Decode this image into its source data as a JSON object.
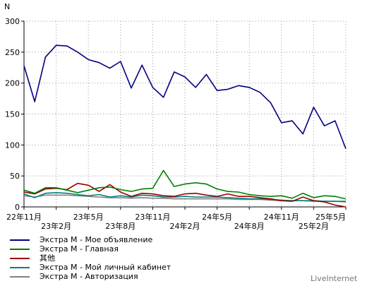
{
  "chart_data": {
    "type": "line",
    "ylabel": "N",
    "ylim": [
      0,
      300
    ],
    "yticks": [
      0,
      50,
      100,
      150,
      200,
      250,
      300
    ],
    "grid": true,
    "legend_position": "bottom-left",
    "x_tick_labels": [
      {
        "label": "22年11月",
        "index": 0,
        "row": 1
      },
      {
        "label": "23年2月",
        "index": 3,
        "row": 2
      },
      {
        "label": "23年5月",
        "index": 6,
        "row": 1
      },
      {
        "label": "23年8月",
        "index": 9,
        "row": 2
      },
      {
        "label": "23年11月",
        "index": 12,
        "row": 1
      },
      {
        "label": "24年2月",
        "index": 15,
        "row": 2
      },
      {
        "label": "24年5月",
        "index": 18,
        "row": 1
      },
      {
        "label": "24年8月",
        "index": 21,
        "row": 2
      },
      {
        "label": "24年11月",
        "index": 24,
        "row": 1
      },
      {
        "label": "25年2月",
        "index": 27,
        "row": 2
      },
      {
        "label": "25年5月",
        "index": 30,
        "row": 1
      }
    ],
    "series": [
      {
        "name": "Экстра М - Мое объявление",
        "color": "#000080",
        "values": [
          228,
          170,
          242,
          261,
          260,
          250,
          238,
          233,
          224,
          235,
          192,
          229,
          193,
          177,
          218,
          210,
          193,
          214,
          188,
          190,
          196,
          193,
          185,
          168,
          136,
          139,
          118,
          161,
          131,
          139,
          94
        ]
      },
      {
        "name": "Экстра М - Главная",
        "color": "#008000",
        "values": [
          27,
          22,
          31,
          31,
          27,
          23,
          27,
          31,
          32,
          28,
          25,
          29,
          30,
          59,
          33,
          37,
          39,
          37,
          29,
          25,
          24,
          20,
          18,
          17,
          18,
          14,
          22,
          15,
          18,
          17,
          13
        ]
      },
      {
        "name": "其他",
        "color": "#990000",
        "values": [
          24,
          21,
          29,
          30,
          28,
          38,
          35,
          25,
          36,
          24,
          17,
          22,
          21,
          18,
          17,
          21,
          22,
          19,
          17,
          21,
          17,
          17,
          15,
          13,
          10,
          9,
          16,
          10,
          8,
          3,
          0
        ]
      },
      {
        "name": "Экстра М - Мой личный кабинет",
        "color": "#008080",
        "values": [
          21,
          15,
          22,
          23,
          22,
          20,
          18,
          20,
          16,
          18,
          16,
          19,
          18,
          16,
          16,
          17,
          16,
          16,
          16,
          15,
          14,
          13,
          13,
          12,
          11,
          10,
          10,
          10,
          9,
          9,
          9
        ]
      },
      {
        "name": "Экстра М - Авторизация",
        "color": "#808080",
        "values": [
          18,
          16,
          19,
          19,
          19,
          18,
          17,
          16,
          15,
          15,
          14,
          15,
          14,
          14,
          13,
          13,
          13,
          13,
          13,
          13,
          12,
          12,
          12,
          11,
          10,
          10,
          10,
          9,
          9,
          9,
          8
        ]
      }
    ]
  },
  "brand": "LiveInternet"
}
